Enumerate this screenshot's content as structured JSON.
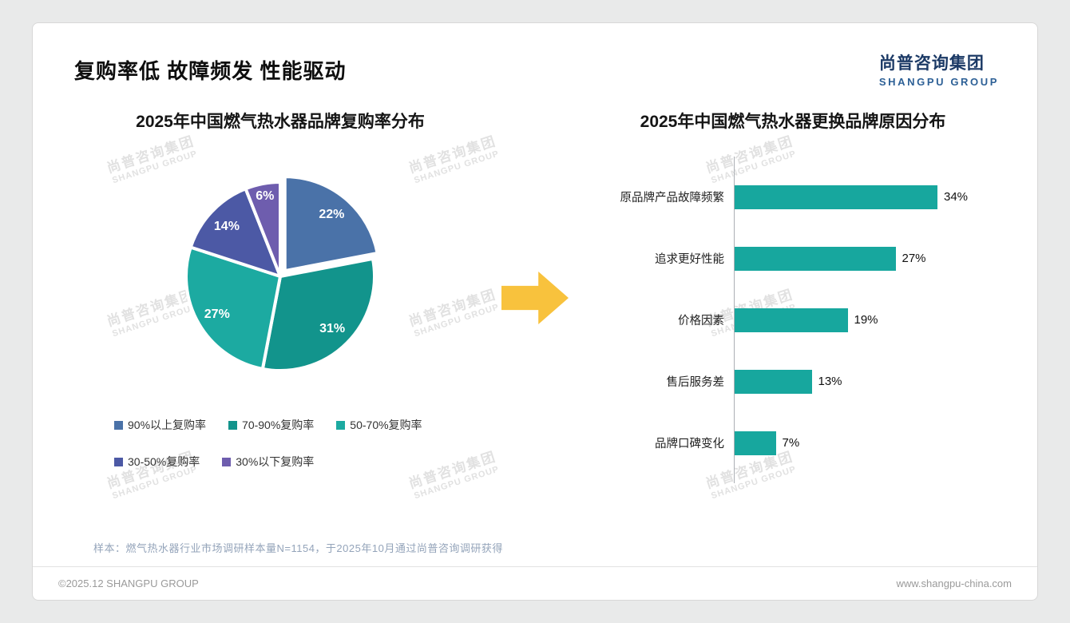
{
  "page": {
    "title": "复购率低 故障频发 性能驱动",
    "logo": {
      "cn": "尚普咨询集团",
      "en": "SHANGPU GROUP"
    },
    "watermark": {
      "cn": "尚普咨询集团",
      "en": "SHANGPU GROUP"
    },
    "footnote": "样本：燃气热水器行业市场调研样本量N=1154，于2025年10月通过尚普咨询调研获得",
    "footer_left": "©2025.12 SHANGPU GROUP",
    "footer_right": "www.shangpu-china.com"
  },
  "chart_data": [
    {
      "type": "pie",
      "title": "2025年中国燃气热水器品牌复购率分布",
      "labels": [
        "90%以上复购率",
        "70-90%复购率",
        "50-70%复购率",
        "30-50%复购率",
        "30%以下复购率"
      ],
      "values": [
        22,
        31,
        27,
        14,
        6
      ],
      "unit": "%",
      "colors": [
        "#4a72a8",
        "#12948c",
        "#1caaa1",
        "#4c59a5",
        "#6e5dae"
      ],
      "legend_position": "bottom",
      "legend_rows": [
        3,
        2
      ]
    },
    {
      "type": "bar",
      "orientation": "horizontal",
      "title": "2025年中国燃气热水器更换品牌原因分布",
      "categories": [
        "原品牌产品故障频繁",
        "追求更好性能",
        "价格因素",
        "售后服务差",
        "品牌口碑变化"
      ],
      "values": [
        34,
        27,
        19,
        13,
        7
      ],
      "unit": "%",
      "bar_color": "#17a79e",
      "xlim": [
        0,
        40
      ],
      "grid": false
    }
  ],
  "arrow_color": "#f8c23d"
}
